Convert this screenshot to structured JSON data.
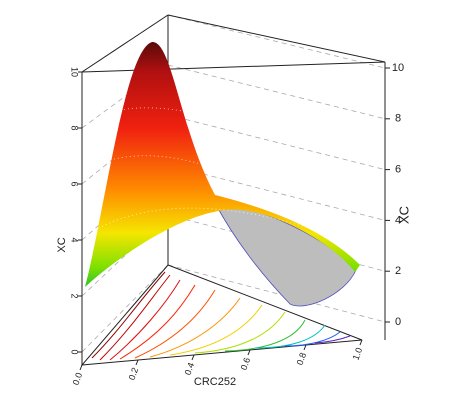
{
  "chart_data": {
    "type": "ternary-surface-3d",
    "x_title": "CRC252",
    "xlim": [
      0,
      1
    ],
    "xticks": [
      {
        "value": 0,
        "label": "0.0"
      },
      0.2,
      0.4,
      0.6,
      0.8,
      {
        "value": 1,
        "label": "1.0"
      }
    ],
    "z_title": "XC",
    "left_z_title": "XC",
    "zlim": [
      0,
      10
    ],
    "zticks": [
      0,
      2,
      4,
      6,
      8,
      10
    ],
    "grid": true
  }
}
